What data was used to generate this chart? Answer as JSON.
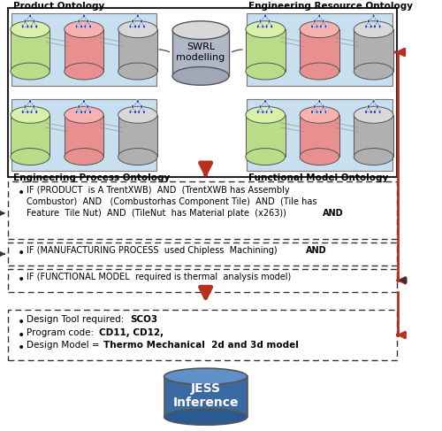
{
  "bg_color": "#ffffff",
  "product_ontology_label": "Product Ontology",
  "eng_resource_label": "Engineering Resource Ontology",
  "eng_process_label": "Engineering Process Ontology",
  "functional_model_label": "Functional Model Ontology",
  "swrl_label": "SWRL\nmodelling",
  "jess_label": "JESS\nInference",
  "if1_line1": "IF (PRODUCT  is A TrentXWB)  AND  (TrentXWB has Assembly",
  "if1_line2": "Combustor)  AND   (Combustorhas Component Tile)  AND  (Tile has",
  "if1_line3": "Feature  Tile Nut)  AND  (TileNut  has Material plate  (x263))  ",
  "if1_bold": "AND",
  "if2_normal": "IF (MANUFACTURING PROCESS  used Chipless  Machining)  ",
  "if2_bold": "AND",
  "if3": "IF (FUNCTIONAL MODEL  required is thermal  analysis model)",
  "out1_normal": "Design Tool required:  ",
  "out1_bold": "SCO3",
  "out2_normal": "Program code:  ",
  "out2_bold": "CD11, CD12,",
  "out3_normal": "Design Model = ",
  "out3_bold": "Thermo Mechanical  2d and 3d model",
  "blue_box_color": "#c8dff0",
  "cyl_green": "#b8dc88",
  "cyl_green_top": "#d8f0a8",
  "cyl_red": "#e89090",
  "cyl_red_top": "#f8b0b0",
  "cyl_gray": "#b0b0b0",
  "cyl_gray_top": "#d8d8d8",
  "arrow_red": "#b83020",
  "arrow_dark": "#222222",
  "jess_top": "#6090c8",
  "jess_side": "#3a6aa0",
  "jess_bot": "#2a5a90",
  "swrl_top": "#d8d8d8",
  "swrl_side": "#b0b8c8",
  "swrl_bot": "#a0a8b8",
  "node_color": "#2244aa",
  "edge_color": "#4466bb"
}
